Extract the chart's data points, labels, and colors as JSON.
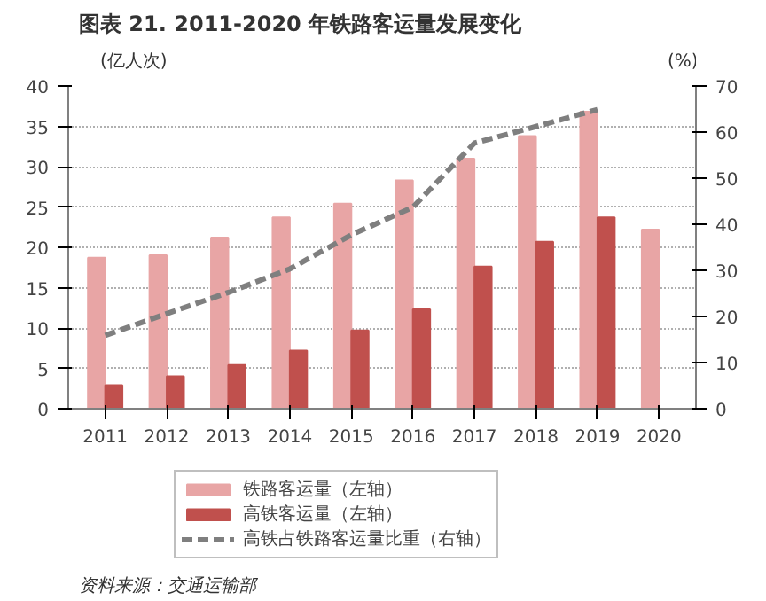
{
  "chart_data": {
    "type": "bar",
    "title": "图表 21. 2011-2020 年铁路客运量发展变化",
    "ylabel": "(亿人次)",
    "y2label": "(%)",
    "categories": [
      "2011",
      "2012",
      "2013",
      "2014",
      "2015",
      "2016",
      "2017",
      "2018",
      "2019",
      "2020"
    ],
    "series": [
      {
        "name": "铁路客运量（左轴）",
        "color": "#e8a5a5",
        "values": [
          18.7,
          19.0,
          21.2,
          23.7,
          25.4,
          28.3,
          31.0,
          33.8,
          36.8,
          22.2
        ]
      },
      {
        "name": "高铁客运量（左轴）",
        "color": "#c0504d",
        "values": [
          2.9,
          4.0,
          5.4,
          7.2,
          9.7,
          12.3,
          17.6,
          20.7,
          23.7,
          null
        ]
      },
      {
        "name": "高铁占铁路客运量比重（右轴）",
        "type": "line",
        "axis": "y2",
        "color": "#7f7f7f",
        "line_style": "dashed",
        "values": [
          15.9,
          20.6,
          25.2,
          30.3,
          37.7,
          43.7,
          57.6,
          61.2,
          64.9,
          null
        ]
      }
    ],
    "ylim": [
      0,
      40
    ],
    "yticks": [
      0,
      5,
      10,
      15,
      20,
      25,
      30,
      35,
      40
    ],
    "y2lim": [
      0,
      70
    ],
    "y2ticks": [
      0,
      10,
      20,
      30,
      40,
      50,
      60,
      70
    ],
    "grid": "y",
    "legend": "bottom",
    "annotations": [
      "资料来源：交通运输部"
    ]
  }
}
